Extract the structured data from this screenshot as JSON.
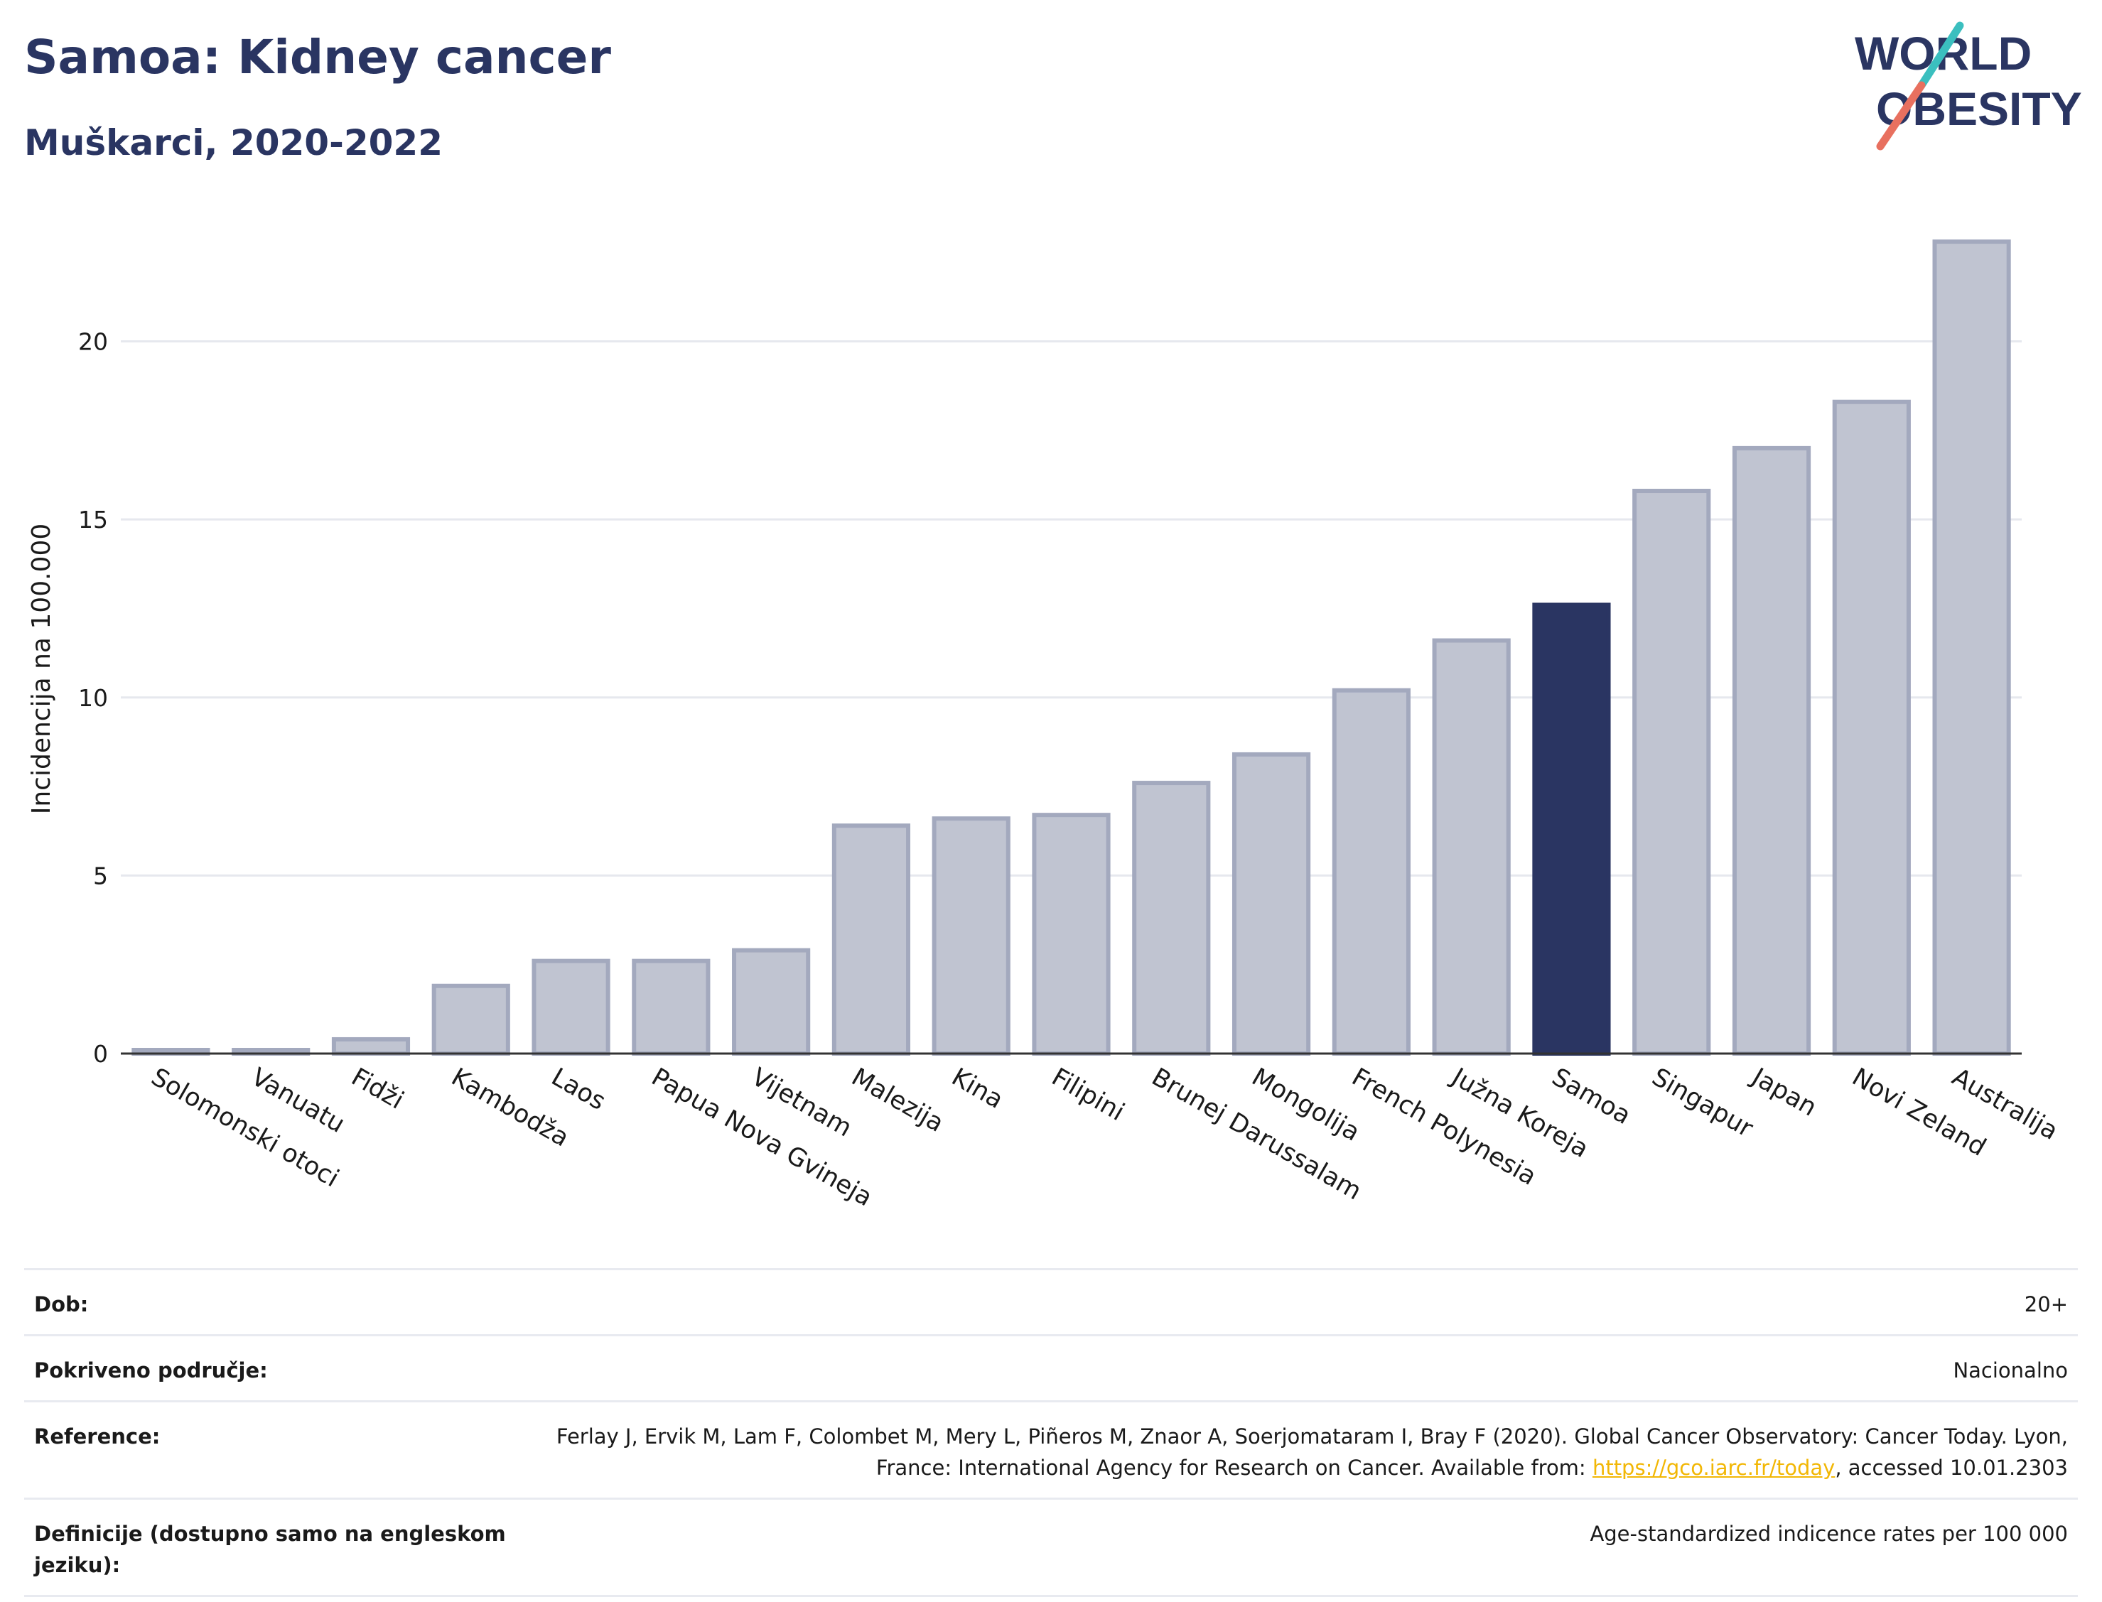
{
  "header": {
    "title": "Samoa: Kidney cancer",
    "subtitle": "Muškarci, 2020-2022",
    "logo_line1": "WORLD",
    "logo_line2": "OBESITY"
  },
  "colors": {
    "highlight": "#2a3562",
    "bar": "#c0c4d1",
    "bar_stroke": "#a3a9be",
    "grid": "#e6e8ee",
    "link": "#f2b705",
    "logo_text": "#2a3562",
    "logo_teal": "#3bbfbf",
    "logo_coral": "#e8705f"
  },
  "chart_data": {
    "type": "bar",
    "title": "",
    "xlabel": "",
    "ylabel": "Incidencija na 100.000",
    "ylim": [
      0,
      24
    ],
    "yticks": [
      0,
      5,
      10,
      15,
      20
    ],
    "grid": true,
    "highlight": "Samoa",
    "categories": [
      "Solomonski otoci",
      "Vanuatu",
      "Fidži",
      "Kambodža",
      "Laos",
      "Papua Nova Gvineja",
      "Vijetnam",
      "Malezija",
      "Kina",
      "Filipini",
      "Brunej Darussalam",
      "Mongolija",
      "French Polynesia",
      "Južna Koreja",
      "Samoa",
      "Singapur",
      "Japan",
      "Novi Zeland",
      "Australija"
    ],
    "values": [
      0.1,
      0.1,
      0.4,
      1.9,
      2.6,
      2.6,
      2.9,
      6.4,
      6.6,
      6.7,
      7.6,
      8.4,
      10.2,
      11.6,
      12.6,
      15.8,
      17.0,
      18.3,
      22.8
    ]
  },
  "info": {
    "rows": [
      {
        "key": "Dob:",
        "value": "20+"
      },
      {
        "key": "Pokriveno područje:",
        "value": "Nacionalno"
      },
      {
        "key": "Reference:",
        "value_before": "Ferlay J, Ervik M, Lam F, Colombet M, Mery L, Piñeros M, Znaor A, Soerjomataram I, Bray F (2020). Global Cancer Observatory: Cancer Today. Lyon, France: International Agency for Research on Cancer. Available from: ",
        "link": "https://gco.iarc.fr/today",
        "value_after": ", accessed 10.01.2303"
      },
      {
        "key": "Definicije (dostupno samo na engleskom jeziku):",
        "value": "Age-standardized indicence rates per 100 000"
      }
    ]
  }
}
